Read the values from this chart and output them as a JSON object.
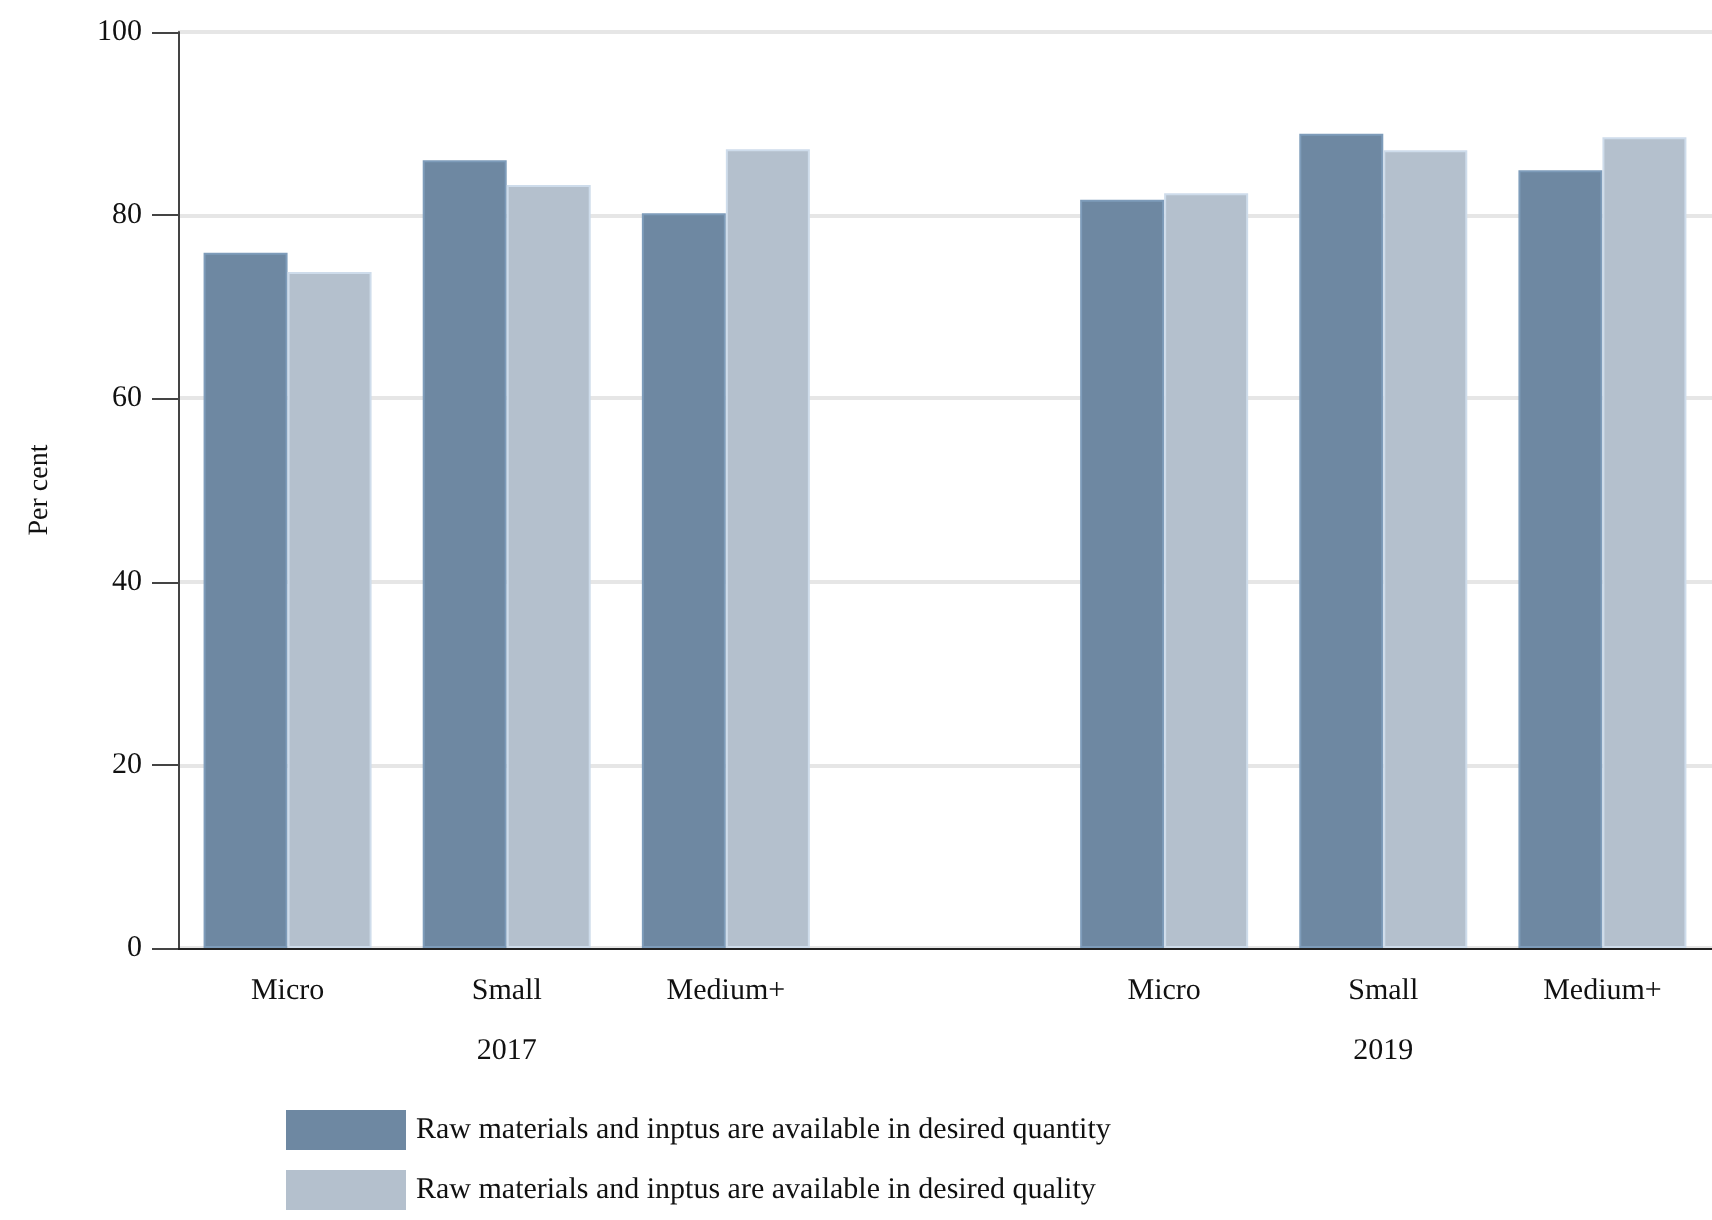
{
  "chart_data": {
    "type": "bar",
    "ylabel": "Per cent",
    "categories": [
      "Micro",
      "Small",
      "Medium+",
      null,
      "Micro",
      "Small",
      "Medium+"
    ],
    "series": [
      {
        "name": "Raw materials and inptus are available in desired quantity",
        "color": "#6e88a2",
        "values": [
          75.9,
          86.0,
          80.2,
          null,
          81.7,
          88.9,
          84.9
        ]
      },
      {
        "name": "Raw materials and inptus are available in desired quality",
        "color": "#b4c0cd",
        "values": [
          73.8,
          83.3,
          87.2,
          null,
          82.4,
          87.1,
          88.5
        ]
      }
    ],
    "annotations": [
      "2017",
      "2019"
    ],
    "ylim": [
      0,
      100
    ],
    "yticks": [
      0,
      20,
      40,
      60,
      80,
      100
    ],
    "grid": "y",
    "legend": "bottom"
  }
}
